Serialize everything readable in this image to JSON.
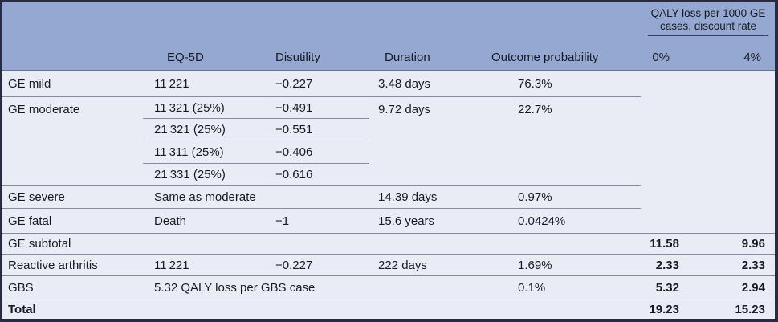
{
  "colors": {
    "header_background": "#94a8d1",
    "body_background": "#e9ecf5",
    "rule_dark": "#272c42",
    "rule_gray": "#868ca0",
    "text": "#181a24"
  },
  "table": {
    "header": {
      "spanner": "QALY loss per 1000 GE cases, discount rate",
      "col_eq5d": "EQ-5D",
      "col_disutility": "Disutility",
      "col_duration": "Duration",
      "col_probability": "Outcome probability",
      "col_discount_0": "0%",
      "col_discount_4": "4%"
    },
    "rows": [
      {
        "label": "GE mild",
        "eq5d": "11 221",
        "disutility": "−0.227",
        "duration": "3.48 days",
        "probability": "76.3%"
      },
      {
        "label": "GE moderate",
        "variants": [
          {
            "eq5d": "11 321 (25%)",
            "disutility": "−0.491"
          },
          {
            "eq5d": "21 321 (25%)",
            "disutility": "−0.551"
          },
          {
            "eq5d": "11 311 (25%)",
            "disutility": "−0.406"
          },
          {
            "eq5d": "21 331 (25%)",
            "disutility": "−0.616"
          }
        ],
        "duration": "9.72 days",
        "probability": "22.7%"
      },
      {
        "label": "GE severe",
        "eq5d": "Same as moderate",
        "duration": "14.39 days",
        "probability": "0.97%"
      },
      {
        "label": "GE fatal",
        "eq5d": "Death",
        "disutility": "−1",
        "duration": "15.6 years",
        "probability": "0.0424%"
      },
      {
        "label": "GE subtotal",
        "qaly_0": "11.58",
        "qaly_4": "9.96"
      },
      {
        "label": "Reactive arthritis",
        "eq5d": "11 221",
        "disutility": "−0.227",
        "duration": "222 days",
        "probability": "1.69%",
        "qaly_0": "2.33",
        "qaly_4": "2.33"
      },
      {
        "label": "GBS",
        "eq5d_note": "5.32 QALY loss per GBS case",
        "probability": "0.1%",
        "qaly_0": "5.32",
        "qaly_4": "2.94"
      },
      {
        "label": "Total",
        "qaly_0": "19.23",
        "qaly_4": "15.23"
      }
    ]
  }
}
